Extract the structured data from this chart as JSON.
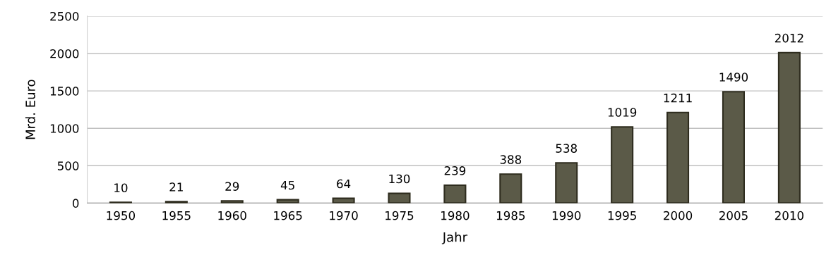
{
  "chart_data": {
    "type": "bar",
    "xlabel": "Jahr",
    "ylabel": "Mrd. Euro",
    "categories": [
      "1950",
      "1955",
      "1960",
      "1965",
      "1970",
      "1975",
      "1980",
      "1985",
      "1990",
      "1995",
      "2000",
      "2005",
      "2010"
    ],
    "values": [
      10,
      21,
      29,
      45,
      64,
      130,
      239,
      388,
      538,
      1019,
      1211,
      1490,
      2012
    ],
    "color": "#5b5a48",
    "ylim": [
      0,
      2500
    ],
    "yticks": [
      0,
      500,
      1000,
      1500,
      2000,
      2500
    ],
    "grid": "y",
    "data_labels": true
  }
}
